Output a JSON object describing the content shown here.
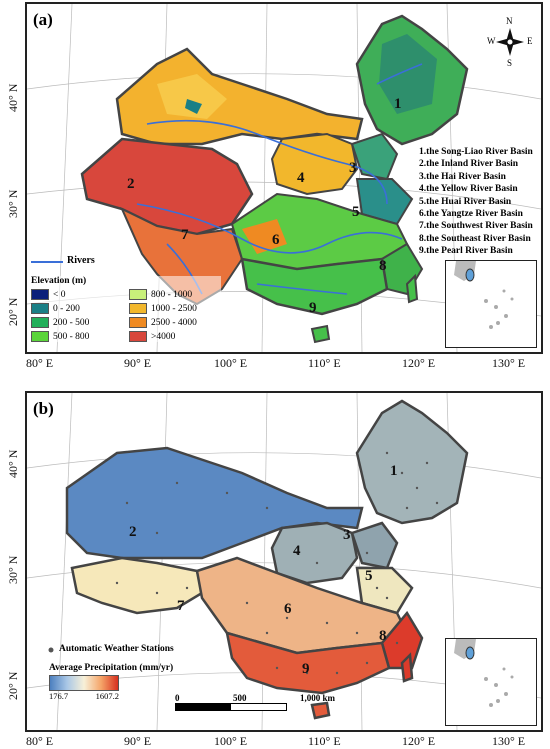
{
  "panel_a": {
    "label": "(a)",
    "basins": [
      {
        "num": "1",
        "name": "1.the Song-Liao River Basin"
      },
      {
        "num": "2",
        "name": "2.the Inland River Basin"
      },
      {
        "num": "3",
        "name": "3.the Hai River Basin"
      },
      {
        "num": "4",
        "name": "4.the Yellow River Basin"
      },
      {
        "num": "5",
        "name": "5.the Huai River Basin"
      },
      {
        "num": "6",
        "name": "6.the Yangtze River Basin"
      },
      {
        "num": "7",
        "name": "7.the Southwest River Basin"
      },
      {
        "num": "8",
        "name": "8.the Southeast River Basin"
      },
      {
        "num": "9",
        "name": "9.the Pearl River Basin"
      }
    ],
    "rivers_label": "Rivers",
    "elevation_title": "Elevation (m)",
    "elevation_classes": [
      {
        "label": "< 0",
        "color": "#0b1f7a"
      },
      {
        "label": "800 - 1000",
        "color": "#c8f07a"
      },
      {
        "label": "0 - 200",
        "color": "#1a7f86"
      },
      {
        "label": "1000 - 2500",
        "color": "#f2b72c"
      },
      {
        "label": "200 - 500",
        "color": "#22b05a"
      },
      {
        "label": "2500 - 4000",
        "color": "#ef8a22"
      },
      {
        "label": "500 - 800",
        "color": "#5ad43a"
      },
      {
        "label": ">4000",
        "color": "#d8473c"
      }
    ],
    "compass": {
      "n": "N",
      "s": "S",
      "e": "E",
      "w": "W"
    }
  },
  "panel_b": {
    "label": "(b)",
    "stations_label": "Automatic Weather Stations",
    "precip_title": "Average Precipitation (mm/yr)",
    "precip_min": "176.7",
    "precip_max": "1607.2",
    "scale_labels": [
      "0",
      "500",
      "1,000 km"
    ]
  },
  "axes": {
    "x_ticks": [
      "80° E",
      "90° E",
      "100° E",
      "110° E",
      "120° E",
      "130° E"
    ],
    "y_ticks_a": [
      "40° N",
      "30° N",
      "20° N"
    ],
    "y_ticks_b": [
      "40° N",
      "30° N",
      "20° N"
    ]
  }
}
